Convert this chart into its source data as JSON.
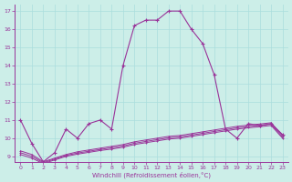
{
  "xlabel": "Windchill (Refroidissement éolien,°C)",
  "bg_color": "#cceee8",
  "grid_color": "#aadddd",
  "line_color": "#993399",
  "xlim_min": -0.5,
  "xlim_max": 23.5,
  "ylim_min": 8.7,
  "ylim_max": 17.4,
  "yticks": [
    9,
    10,
    11,
    12,
    13,
    14,
    15,
    16,
    17
  ],
  "xticks": [
    0,
    1,
    2,
    3,
    4,
    5,
    6,
    7,
    8,
    9,
    10,
    11,
    12,
    13,
    14,
    15,
    16,
    17,
    18,
    19,
    20,
    21,
    22,
    23
  ],
  "main_line": [
    11.0,
    9.7,
    8.7,
    9.2,
    10.5,
    10.0,
    10.8,
    11.0,
    10.5,
    14.0,
    16.2,
    16.5,
    16.5,
    17.0,
    17.0,
    16.0,
    15.2,
    13.5,
    10.5,
    10.0,
    10.8,
    10.7,
    10.8,
    10.2
  ],
  "line2": [
    9.3,
    9.1,
    8.7,
    8.9,
    9.1,
    9.25,
    9.35,
    9.45,
    9.55,
    9.65,
    9.8,
    9.9,
    10.0,
    10.1,
    10.15,
    10.25,
    10.35,
    10.45,
    10.55,
    10.65,
    10.72,
    10.78,
    10.85,
    10.15
  ],
  "line3": [
    9.2,
    9.0,
    8.65,
    8.85,
    9.05,
    9.18,
    9.28,
    9.38,
    9.47,
    9.57,
    9.72,
    9.82,
    9.92,
    10.02,
    10.07,
    10.17,
    10.27,
    10.37,
    10.47,
    10.57,
    10.64,
    10.7,
    10.77,
    10.07
  ],
  "line4": [
    9.1,
    8.9,
    8.6,
    8.8,
    9.0,
    9.12,
    9.22,
    9.32,
    9.4,
    9.5,
    9.65,
    9.75,
    9.85,
    9.95,
    10.0,
    10.1,
    10.2,
    10.3,
    10.4,
    10.5,
    10.57,
    10.63,
    10.7,
    10.0
  ]
}
